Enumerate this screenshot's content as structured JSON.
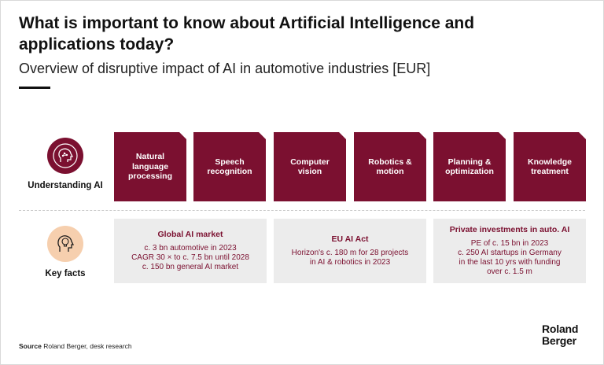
{
  "header": {
    "title": "What is important to know about Artificial Intelligence and applications today?",
    "subtitle": "Overview of disruptive impact of AI in automotive industries [EUR]"
  },
  "rows": {
    "understanding": {
      "label": "Understanding AI",
      "icon": "ai-head-icon"
    },
    "key_facts": {
      "label": "Key facts",
      "icon": "lightbulb-head-icon"
    }
  },
  "tiles": [
    {
      "label": "Natural language processing"
    },
    {
      "label": "Speech recognition"
    },
    {
      "label": "Computer vision"
    },
    {
      "label": "Robotics & motion"
    },
    {
      "label": "Planning & optimization"
    },
    {
      "label": "Knowledge treatment"
    }
  ],
  "facts": [
    {
      "title": "Global AI market",
      "lines": [
        "c. 3 bn automotive in 2023",
        "CAGR 30 × to c. 7.5 bn until 2028",
        "c. 150 bn general AI market"
      ]
    },
    {
      "title": "EU AI Act",
      "lines": [
        "Horizon's c. 180 m for 28 projects",
        "in AI & robotics in 2023"
      ]
    },
    {
      "title": "Private investments in auto. AI",
      "lines": [
        "PE of c. 15 bn in 2023",
        "c. 250 AI startups in Germany",
        "in the last 10 yrs with funding",
        "over c. 1.5 m"
      ]
    }
  ],
  "footer": {
    "source_label": "Source",
    "source_text": "Roland Berger, desk research",
    "logo_line1": "Roland",
    "logo_line2": "Berger"
  },
  "colors": {
    "accent": "#7b1030",
    "fact_bg": "#ececec",
    "icon_light": "#f6cfae"
  }
}
